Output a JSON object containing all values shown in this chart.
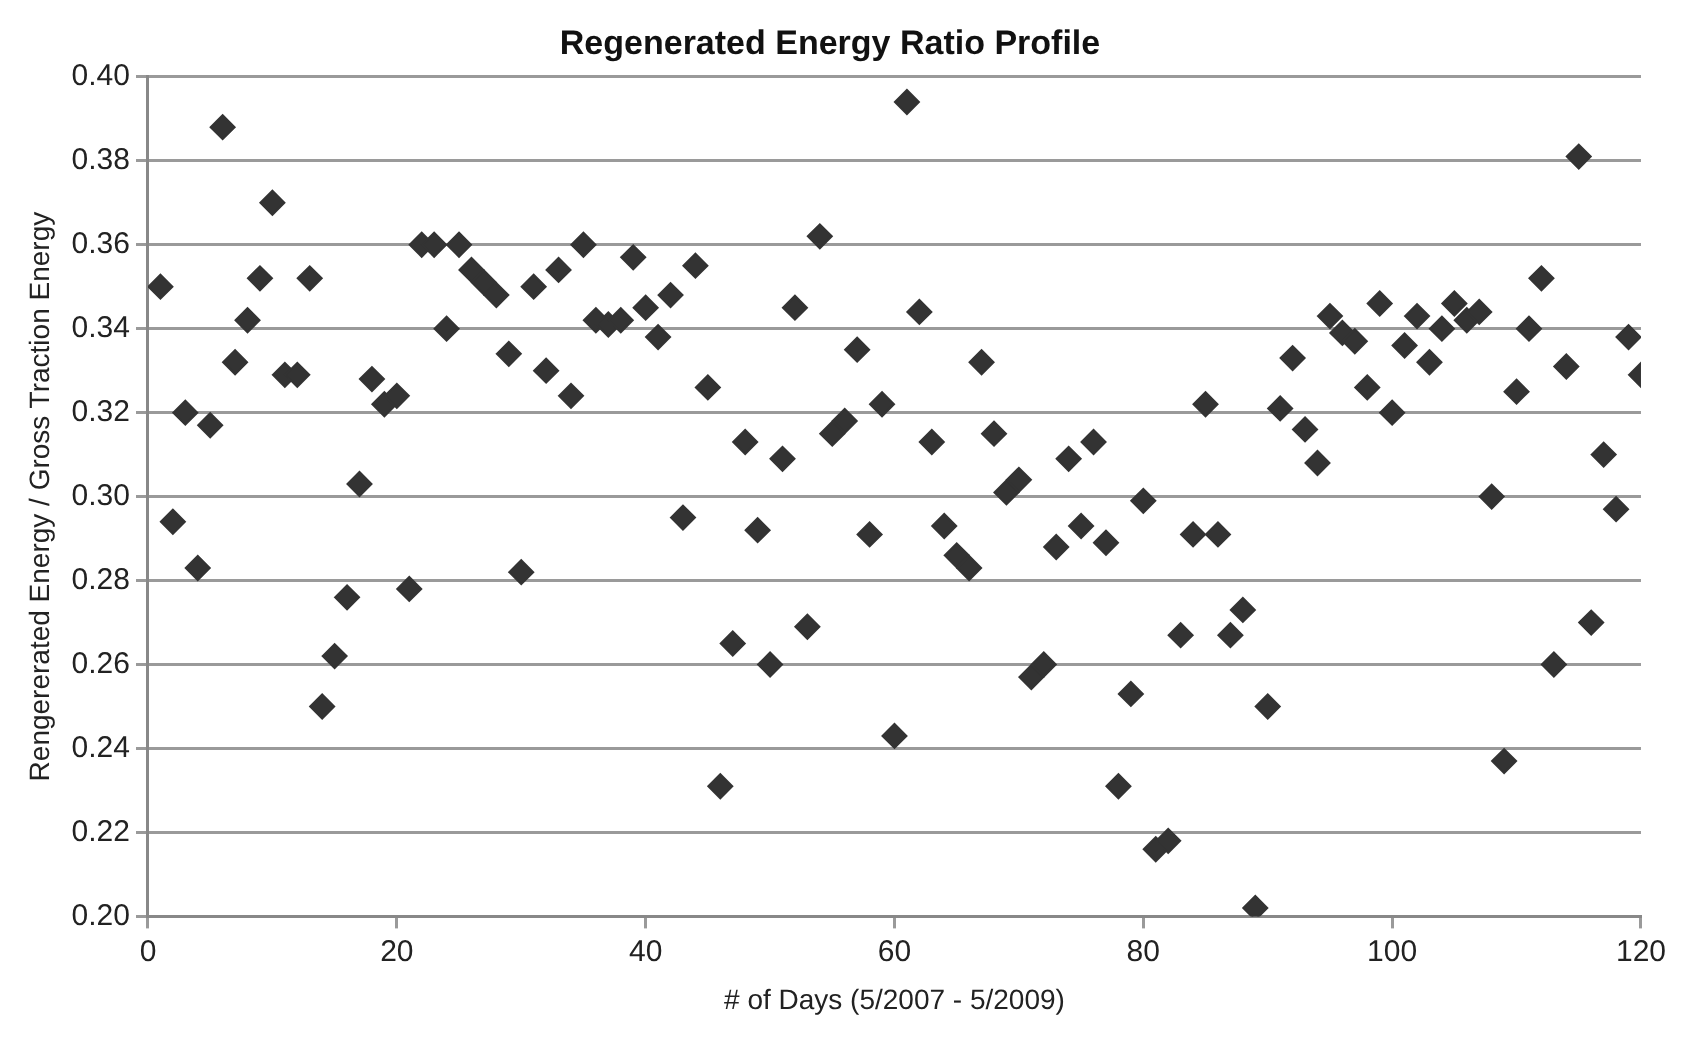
{
  "chart_data": {
    "type": "scatter",
    "title": "Regenerated Energy Ratio Profile",
    "xlabel": "# of Days (5/2007 - 5/2009)",
    "ylabel": "Rengererated Energy / Gross Traction Energy",
    "x": [
      1,
      2,
      3,
      4,
      5,
      6,
      7,
      8,
      9,
      10,
      11,
      12,
      13,
      14,
      15,
      16,
      17,
      18,
      19,
      20,
      21,
      22,
      23,
      24,
      25,
      26,
      27,
      28,
      29,
      30,
      31,
      32,
      33,
      34,
      35,
      36,
      37,
      38,
      39,
      40,
      41,
      42,
      43,
      44,
      45,
      46,
      47,
      48,
      49,
      50,
      51,
      52,
      53,
      54,
      55,
      56,
      57,
      58,
      59,
      60,
      61,
      62,
      63,
      64,
      65,
      66,
      67,
      68,
      69,
      70,
      71,
      72,
      73,
      74,
      75,
      76,
      77,
      78,
      79,
      80,
      81,
      82,
      83,
      84,
      85,
      86,
      87,
      88,
      89,
      90,
      91,
      92,
      93,
      94,
      95,
      96,
      97,
      98,
      99,
      100,
      101,
      102,
      103,
      104,
      105,
      106,
      107,
      108,
      109,
      110,
      111,
      112,
      113,
      114,
      115,
      116,
      117,
      118,
      119,
      120
    ],
    "series": [
      {
        "color": "#333333",
        "values": [
          0.35,
          0.294,
          0.32,
          0.283,
          0.317,
          0.388,
          0.332,
          0.342,
          0.352,
          0.37,
          0.329,
          0.329,
          0.352,
          0.25,
          0.262,
          0.276,
          0.303,
          0.328,
          0.322,
          0.324,
          0.278,
          0.36,
          0.36,
          0.34,
          0.36,
          0.354,
          0.351,
          0.348,
          0.334,
          0.282,
          0.35,
          0.33,
          0.354,
          0.324,
          0.36,
          0.342,
          0.341,
          0.342,
          0.357,
          0.345,
          0.338,
          0.348,
          0.295,
          0.355,
          0.326,
          0.231,
          0.265,
          0.313,
          0.292,
          0.26,
          0.309,
          0.345,
          0.269,
          0.362,
          0.315,
          0.318,
          0.335,
          0.291,
          0.322,
          0.243,
          0.394,
          0.344,
          0.313,
          0.293,
          0.286,
          0.283,
          0.332,
          0.315,
          0.301,
          0.304,
          0.257,
          0.26,
          0.288,
          0.309,
          0.293,
          0.313,
          0.289,
          0.231,
          0.253,
          0.299,
          0.216,
          0.218,
          0.267,
          0.291,
          0.322,
          0.291,
          0.267,
          0.273,
          0.202,
          0.25,
          0.321,
          0.333,
          0.316,
          0.308,
          0.343,
          0.339,
          0.337,
          0.326,
          0.346,
          0.32,
          0.336,
          0.343,
          0.332,
          0.34,
          0.346,
          0.342,
          0.344,
          0.3,
          0.237,
          0.325,
          0.34,
          0.352,
          0.26,
          0.331,
          0.381,
          0.27,
          0.31,
          0.297,
          0.338,
          0.329
        ]
      }
    ],
    "xlim": [
      0,
      120
    ],
    "xticks": [
      0,
      20,
      40,
      60,
      80,
      100,
      120
    ],
    "ylim": [
      0.2,
      0.4
    ],
    "yticks": [
      {
        "value": 0.2,
        "label": "0.20"
      },
      {
        "value": 0.22,
        "label": "0.22"
      },
      {
        "value": 0.24,
        "label": "0.24"
      },
      {
        "value": 0.26,
        "label": "0.26"
      },
      {
        "value": 0.28,
        "label": "0.28"
      },
      {
        "value": 0.3,
        "label": "0.30"
      },
      {
        "value": 0.32,
        "label": "0.32"
      },
      {
        "value": 0.34,
        "label": "0.34"
      },
      {
        "value": 0.36,
        "label": "0.36"
      },
      {
        "value": 0.38,
        "label": "0.38"
      },
      {
        "value": 0.4,
        "label": "0.40"
      }
    ],
    "grid": "y",
    "marker": "diamond",
    "legend": false
  }
}
